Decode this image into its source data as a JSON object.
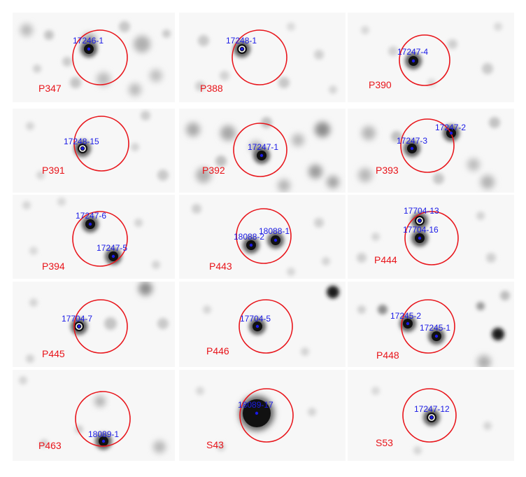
{
  "panels": [
    {
      "id": "P347",
      "sources": [
        {
          "label": "17246-1"
        }
      ]
    },
    {
      "id": "P388",
      "sources": [
        {
          "label": "17248-1"
        }
      ]
    },
    {
      "id": "P390",
      "sources": [
        {
          "label": "17247-4"
        }
      ]
    },
    {
      "id": "P391",
      "sources": [
        {
          "label": "17248-15"
        }
      ]
    },
    {
      "id": "P392",
      "sources": [
        {
          "label": "17247-1"
        }
      ]
    },
    {
      "id": "P393",
      "sources": [
        {
          "label": "17247-3"
        },
        {
          "label": "17247-2"
        }
      ]
    },
    {
      "id": "P394",
      "sources": [
        {
          "label": "17247-6"
        },
        {
          "label": "17247-5"
        }
      ]
    },
    {
      "id": "P443",
      "sources": [
        {
          "label": "18088-2"
        },
        {
          "label": "18088-1"
        }
      ]
    },
    {
      "id": "P444",
      "sources": [
        {
          "label": "17704-13"
        },
        {
          "label": "17704-16"
        }
      ]
    },
    {
      "id": "P445",
      "sources": [
        {
          "label": "17704-7"
        }
      ]
    },
    {
      "id": "P446",
      "sources": [
        {
          "label": "17704-5"
        }
      ]
    },
    {
      "id": "P448",
      "sources": [
        {
          "label": "17245-2"
        },
        {
          "label": "17245-1"
        }
      ]
    },
    {
      "id": "P463",
      "sources": [
        {
          "label": "18089-1"
        }
      ]
    },
    {
      "id": "S43",
      "sources": [
        {
          "label": "18089-17"
        }
      ]
    },
    {
      "id": "S53",
      "sources": [
        {
          "label": "17247-12"
        }
      ]
    }
  ],
  "colors": {
    "circle": "#e8141a",
    "panel_label": "#e8141a",
    "source_label": "#1a1ae6",
    "marker": "#1a1ae6",
    "background": "#ffffff"
  }
}
